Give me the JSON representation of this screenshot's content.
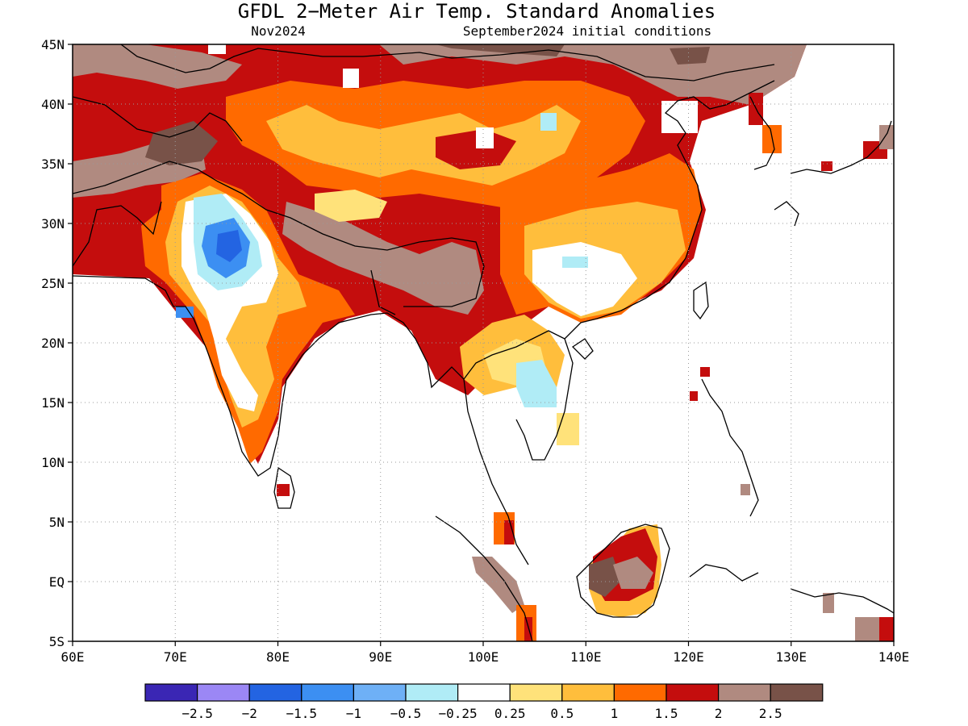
{
  "title": "GFDL 2−Meter Air Temp. Standard Anomalies",
  "valid_month": "Nov2024",
  "initial_conditions": "September2024 initial conditions",
  "map": {
    "lon_range": [
      60,
      140
    ],
    "lat_range": [
      -5,
      45
    ],
    "lon_labels": [
      "60E",
      "70E",
      "80E",
      "90E",
      "100E",
      "110E",
      "120E",
      "130E",
      "140E"
    ],
    "lat_labels": [
      "45N",
      "40N",
      "35N",
      "30N",
      "25N",
      "20N",
      "15N",
      "10N",
      "5N",
      "EQ",
      "5S"
    ],
    "grid": "dotted"
  },
  "colorbar": {
    "colors": [
      "#3a26b4",
      "#9b87f5",
      "#2364e2",
      "#3c8ff2",
      "#6eb0f6",
      "#b0ecf6",
      "#ffffff",
      "#ffe27a",
      "#ffbe3c",
      "#ff6a00",
      "#c40d0d",
      "#b08a80",
      "#785248"
    ],
    "labels": [
      "−2.5",
      "−2",
      "−1.5",
      "−1",
      "−0.5",
      "−0.25",
      "0.25",
      "0.5",
      "1",
      "1.5",
      "2",
      "2.5"
    ]
  }
}
